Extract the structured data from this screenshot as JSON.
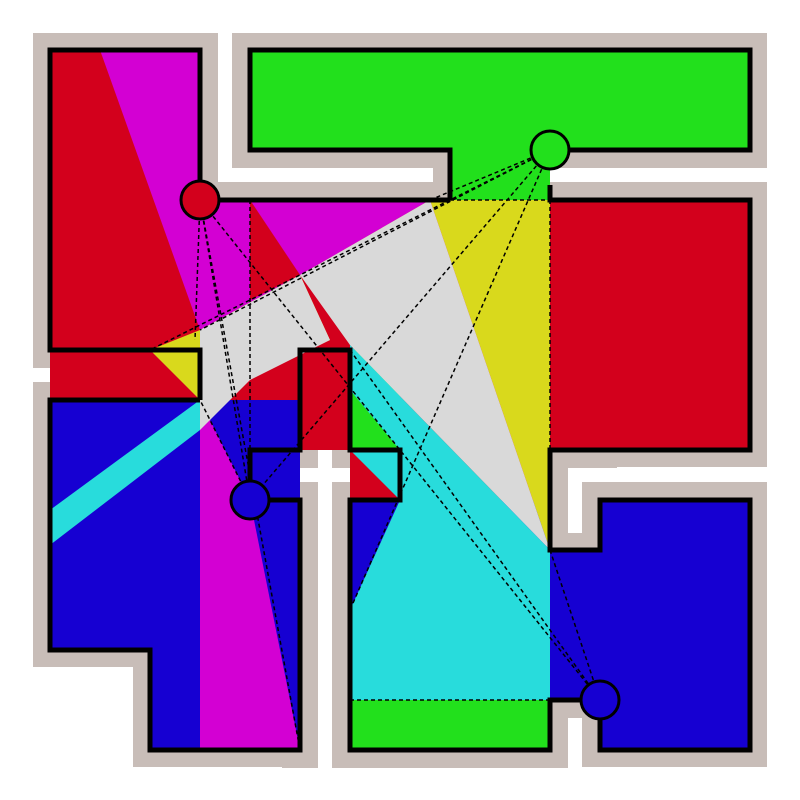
{
  "colors": {
    "wall_halo": "#c8bdb8",
    "background": "#ffffff",
    "outline": "#000000",
    "red": "#d3001c",
    "green": "#22e01c",
    "blue": "#1600d2",
    "magenta": "#d300d3",
    "cyan": "#28dcdc",
    "yellow": "#d9d91c",
    "light_gray": "#d9d9d9"
  },
  "rooms": [
    {
      "name": "room-top-left",
      "color": "red"
    },
    {
      "name": "room-top",
      "color": "green"
    },
    {
      "name": "room-right",
      "color": "red"
    },
    {
      "name": "room-center",
      "color": "red"
    },
    {
      "name": "room-left",
      "color": "blue"
    },
    {
      "name": "room-bottom-center",
      "color": "blue"
    },
    {
      "name": "room-bottom-right",
      "color": "blue"
    }
  ],
  "guards": [
    {
      "name": "guard-red",
      "color": "red"
    },
    {
      "name": "guard-green",
      "color": "green"
    },
    {
      "name": "guard-blue-left",
      "color": "blue"
    },
    {
      "name": "guard-blue-right",
      "color": "blue"
    }
  ]
}
